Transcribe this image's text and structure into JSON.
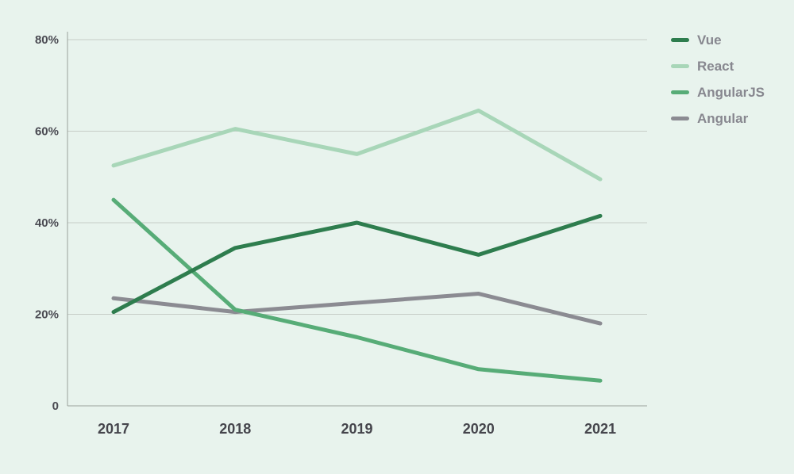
{
  "chart_data": {
    "type": "line",
    "x": [
      "2017",
      "2018",
      "2019",
      "2020",
      "2021"
    ],
    "series": [
      {
        "name": "Vue",
        "color": "#2e7d4e",
        "values": [
          20.5,
          34.5,
          40,
          33,
          41.5
        ]
      },
      {
        "name": "React",
        "color": "#a8d6b8",
        "values": [
          52.5,
          60.5,
          55,
          64.5,
          49.5
        ]
      },
      {
        "name": "AngularJS",
        "color": "#57ac77",
        "values": [
          45,
          21,
          15,
          8,
          5.5
        ]
      },
      {
        "name": "Angular",
        "color": "#8b8b92",
        "values": [
          23.5,
          20.5,
          22.5,
          24.5,
          18
        ]
      }
    ],
    "title": "",
    "xlabel": "",
    "ylabel": "",
    "ylim": [
      0,
      80
    ],
    "yticks": [
      0,
      20,
      40,
      60,
      80
    ],
    "ytick_labels": [
      "0",
      "20%",
      "40%",
      "60%",
      "80%"
    ],
    "grid": true,
    "legend_position": "right"
  },
  "colors": {
    "background": "#e8f3ed",
    "gridline": "#c6cdc7",
    "axis": "#9aa19b",
    "tick_text": "#4a4a52",
    "legend_text": "#87878f"
  }
}
